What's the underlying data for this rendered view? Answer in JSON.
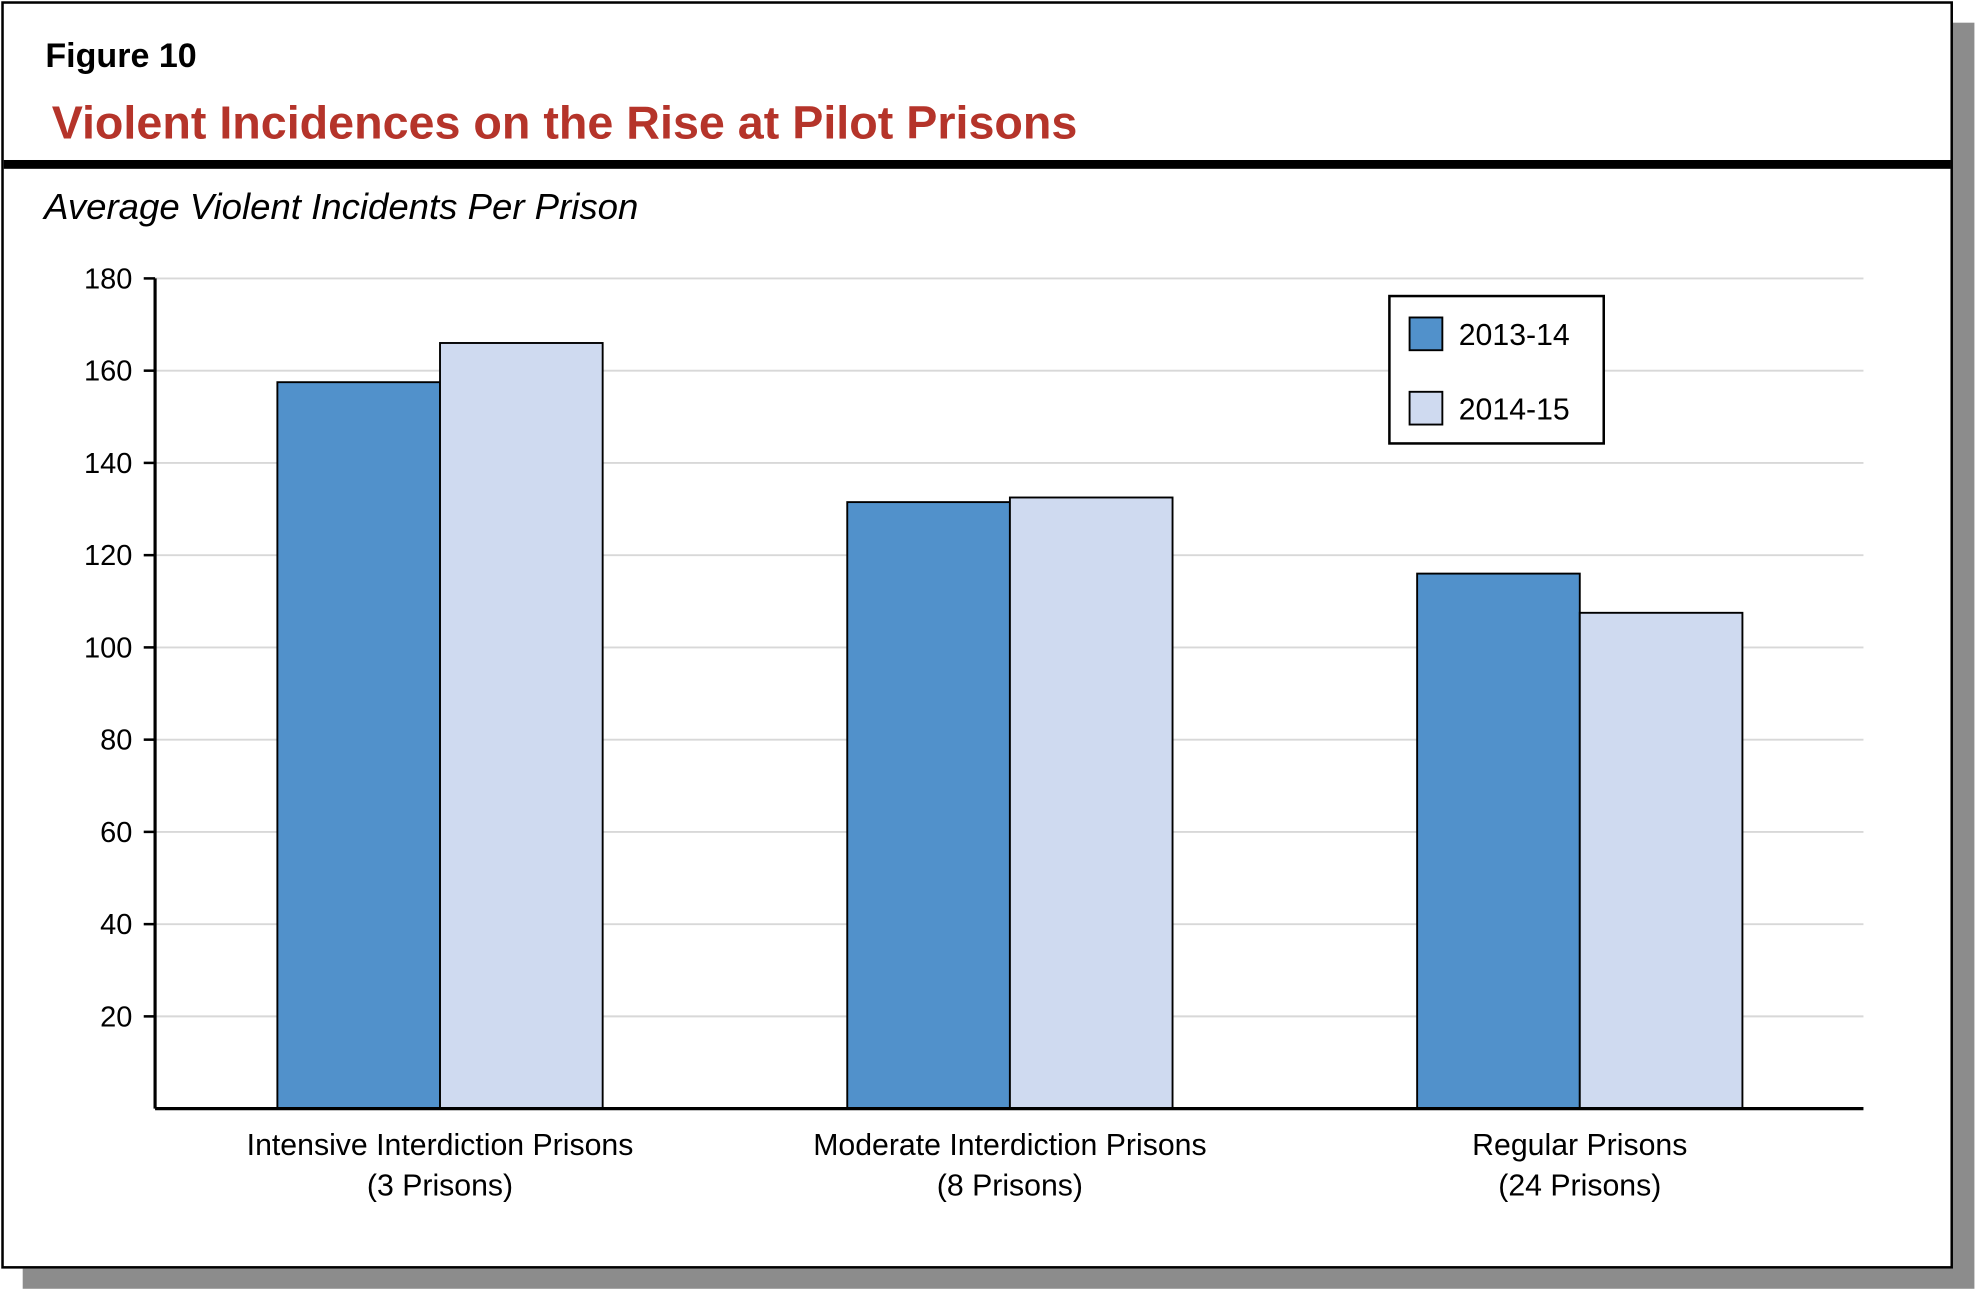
{
  "figure_label": "Figure 10",
  "title": "Violent Incidences on the Rise at Pilot Prisons",
  "colors": {
    "title": "#b5342a",
    "series_2013_14": "#5191cb",
    "series_2014_15": "#cfdaf0"
  },
  "chart_data": {
    "type": "bar",
    "title": "Violent Incidences on the Rise at Pilot Prisons",
    "ylabel": "Average Violent Incidents Per Prison",
    "xlabel": "",
    "ylim": [
      0,
      180
    ],
    "yticks": [
      20,
      40,
      60,
      80,
      100,
      120,
      140,
      160,
      180
    ],
    "grid": true,
    "legend_position": "top-right",
    "categories": [
      [
        "Intensive Interdiction Prisons",
        "(3 Prisons)"
      ],
      [
        "Moderate Interdiction Prisons",
        "(8 Prisons)"
      ],
      [
        "Regular Prisons",
        "(24 Prisons)"
      ]
    ],
    "series": [
      {
        "name": "2013-14",
        "color": "#5191cb",
        "values": [
          157.5,
          131.5,
          116
        ]
      },
      {
        "name": "2014-15",
        "color": "#cfdaf0",
        "values": [
          166,
          132.5,
          107.5
        ]
      }
    ]
  }
}
